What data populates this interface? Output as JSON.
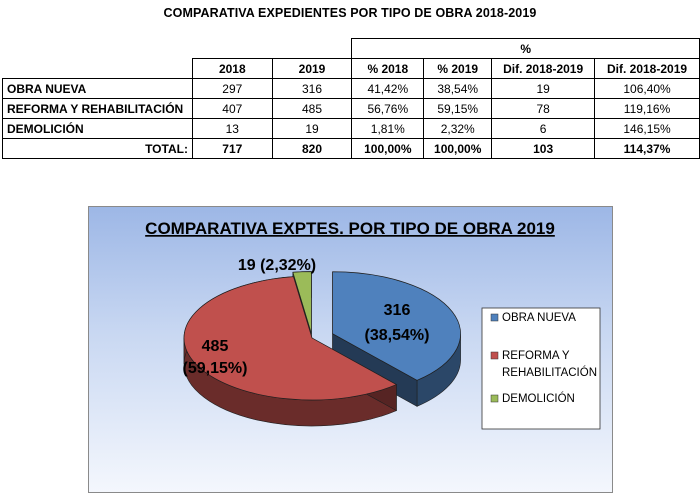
{
  "title": "COMPARATIVA EXPEDIENTES POR TIPO DE OBRA 2018-2019",
  "table": {
    "group_header": "%",
    "columns": [
      "2018",
      "2019",
      "% 2018",
      "% 2019",
      "Dif. 2018-2019",
      "Dif. 2018-2019"
    ],
    "rows": [
      {
        "label": "OBRA NUEVA",
        "cells": [
          "297",
          "316",
          "41,42%",
          "38,54%",
          "19",
          "106,40%"
        ]
      },
      {
        "label": "REFORMA Y REHABILITACIÓN",
        "cells": [
          "407",
          "485",
          "56,76%",
          "59,15%",
          "78",
          "119,16%"
        ]
      },
      {
        "label": "DEMOLICIÓN",
        "cells": [
          "13",
          "19",
          "1,81%",
          "2,32%",
          "6",
          "146,15%"
        ]
      }
    ],
    "total": {
      "label": "TOTAL:",
      "cells": [
        "717",
        "820",
        "100,00%",
        "100,00%",
        "103",
        "114,37%"
      ]
    }
  },
  "chart_data": {
    "type": "pie",
    "title": "COMPARATIVA EXPTES. POR TIPO DE OBRA 2019",
    "legend_position": "right",
    "slices": [
      {
        "name": "OBRA NUEVA",
        "value": 316,
        "percent": 38.54,
        "value_label": "316",
        "percent_label": "(38,54%)",
        "color": "#4f81bd"
      },
      {
        "name": "REFORMA Y REHABILITACIÓN",
        "value": 485,
        "percent": 59.15,
        "value_label": "485",
        "percent_label": "(59,15%)",
        "color": "#c0504d"
      },
      {
        "name": "DEMOLICIÓN",
        "value": 19,
        "percent": 2.32,
        "value_label": "19 (2,32%)",
        "percent_label": "",
        "color": "#9bbb59"
      }
    ],
    "legend": [
      "OBRA NUEVA",
      "REFORMA Y REHABILITACIÓN",
      "DEMOLICIÓN"
    ],
    "legend_lines": [
      [
        "OBRA NUEVA"
      ],
      [
        "REFORMA Y",
        "REHABILITACIÓN"
      ],
      [
        "DEMOLICIÓN"
      ]
    ]
  }
}
